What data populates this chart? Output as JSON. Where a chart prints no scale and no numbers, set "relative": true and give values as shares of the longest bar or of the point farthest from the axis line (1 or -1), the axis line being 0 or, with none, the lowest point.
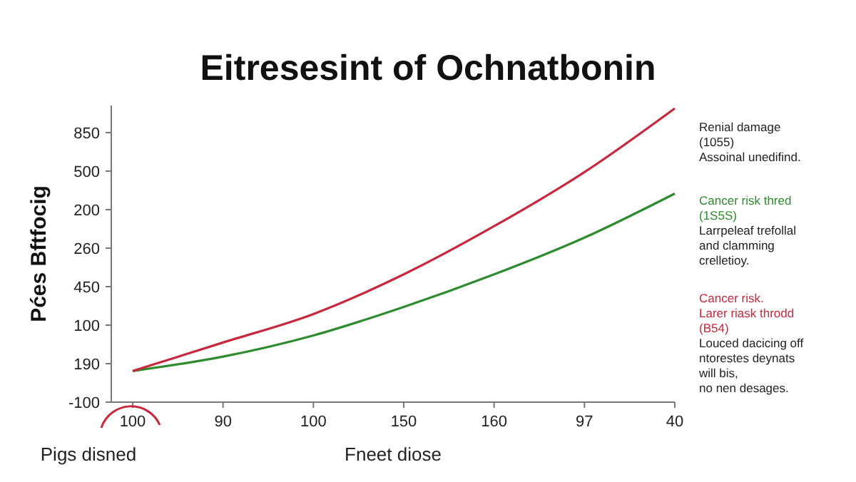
{
  "chart_data": {
    "type": "line",
    "title": "Eitresesint of Ochnatbonin",
    "xlabel": "Fneet diose",
    "ylabel": "Pćes Bftfocig",
    "relative": true,
    "categories": [
      "100",
      "90",
      "100",
      "150",
      "160",
      "97",
      "40"
    ],
    "series": [
      {
        "name": "Cancer risk thred\n(1S5S)",
        "color": "#2e8b2e",
        "values": [
          0.106,
          0.155,
          0.227,
          0.324,
          0.435,
          0.56,
          0.71
        ]
      },
      {
        "name": "Cancer risk.\nLarer riask throdd\n(B54)",
        "color": "#c8283c",
        "values": [
          0.106,
          0.203,
          0.3,
          0.435,
          0.599,
          0.783,
          1
        ]
      }
    ],
    "annotations": [
      "Renial damage\n(1055)\nAssoinal unedifind.",
      "Larrpeleaf trefollal\nand clamming\ncrelletioy.",
      "Louced dacicing off\nntorestes deynats\nwill bis,\nno nen desages.",
      "Pigs disned",
      "-100",
      "190",
      "100",
      "450",
      "260",
      "200",
      "500",
      "850"
    ],
    "legend": "right",
    "grid": false,
    "marker": "none",
    "line_style": "solid"
  }
}
